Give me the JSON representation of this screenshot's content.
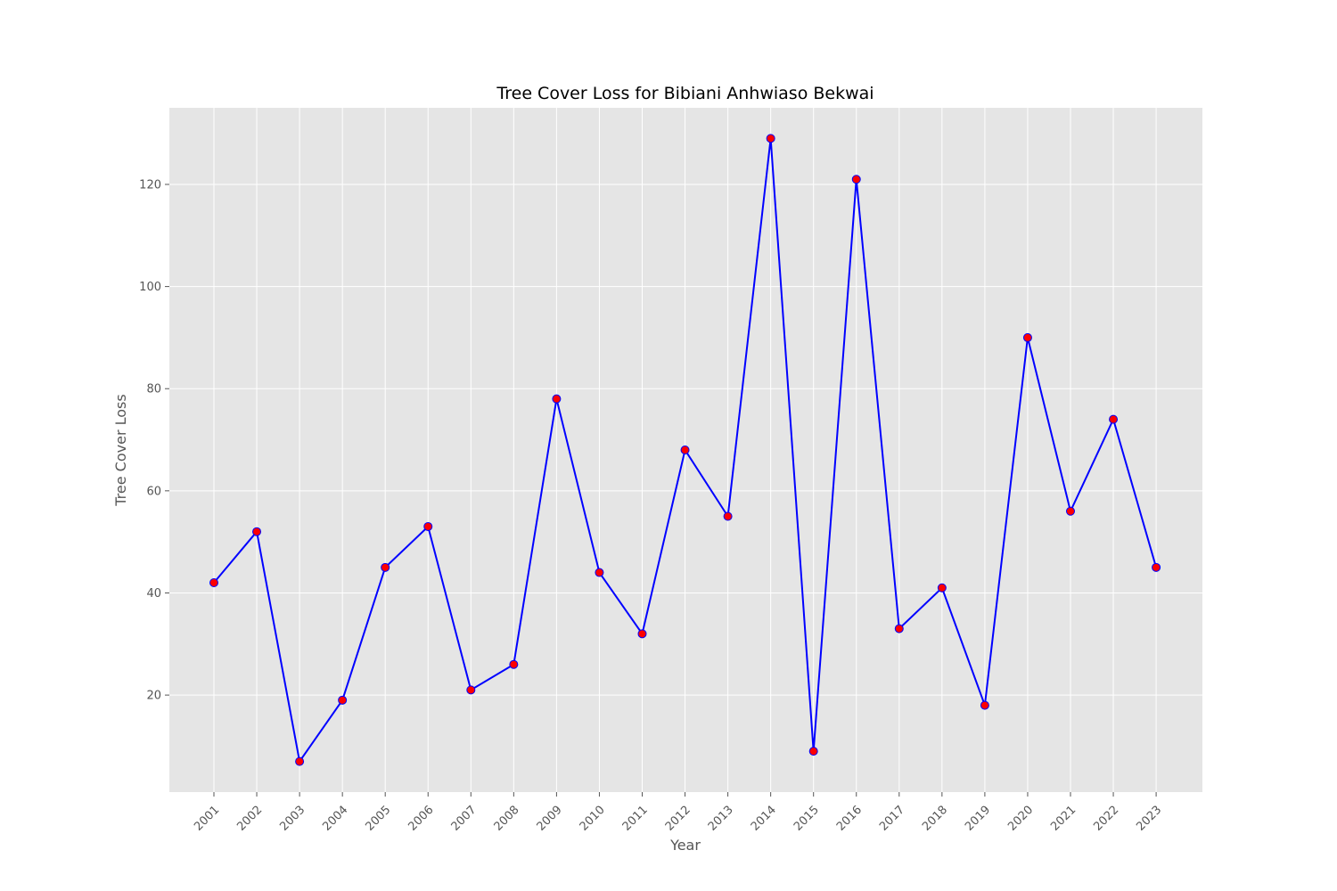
{
  "chart_data": {
    "type": "line",
    "title": "Tree Cover Loss for Bibiani Anhwiaso Bekwai",
    "xlabel": "Year",
    "ylabel": "Tree Cover Loss",
    "categories": [
      "2001",
      "2002",
      "2003",
      "2004",
      "2005",
      "2006",
      "2007",
      "2008",
      "2009",
      "2010",
      "2011",
      "2012",
      "2013",
      "2014",
      "2015",
      "2016",
      "2017",
      "2018",
      "2019",
      "2020",
      "2021",
      "2022",
      "2023"
    ],
    "values": [
      42,
      52,
      7,
      19,
      45,
      53,
      21,
      26,
      78,
      44,
      32,
      68,
      55,
      129,
      9,
      121,
      33,
      41,
      18,
      90,
      56,
      74,
      45
    ],
    "yticks": [
      20,
      40,
      60,
      80,
      100,
      120
    ],
    "ylim": [
      1,
      135
    ],
    "grid": true,
    "line_color": "#0000ff",
    "marker_color": "#ff0000",
    "plot_background": "#e5e5e5"
  }
}
